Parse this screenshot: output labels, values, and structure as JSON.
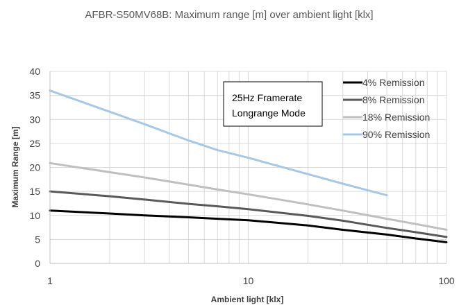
{
  "chart_data": {
    "type": "line",
    "title": "AFBR-S50MV68B: Maximum range [m] over ambient light [klx]",
    "xlabel": "Ambient light [klx]",
    "ylabel": "Maximum Range  [m]",
    "x_scale": "log",
    "xlim": [
      1,
      100
    ],
    "ylim": [
      0,
      40
    ],
    "x_ticks": [
      1,
      10,
      100
    ],
    "y_ticks": [
      0,
      5,
      10,
      15,
      20,
      25,
      30,
      35,
      40
    ],
    "grid": true,
    "legend_position": "top-right",
    "annotation": [
      "25Hz  Framerate",
      "Longrange Mode"
    ],
    "series": [
      {
        "name": "4% Remission",
        "color": "#000000",
        "x": [
          1,
          2,
          3,
          5,
          7,
          10,
          20,
          30,
          50,
          70,
          100
        ],
        "y": [
          11.0,
          10.4,
          10.0,
          9.6,
          9.3,
          9.0,
          7.9,
          7.0,
          6.0,
          5.2,
          4.4
        ]
      },
      {
        "name": "8% Remission",
        "color": "#595959",
        "x": [
          1,
          2,
          3,
          5,
          7,
          10,
          20,
          30,
          50,
          70,
          100
        ],
        "y": [
          15.0,
          14.0,
          13.3,
          12.4,
          11.9,
          11.3,
          9.9,
          8.9,
          7.4,
          6.5,
          5.5
        ]
      },
      {
        "name": "18% Remission",
        "color": "#bfbfbf",
        "x": [
          1,
          2,
          3,
          5,
          7,
          10,
          20,
          30,
          50,
          70,
          100
        ],
        "y": [
          20.9,
          19.0,
          17.9,
          16.4,
          15.4,
          14.4,
          12.3,
          11.0,
          9.3,
          8.2,
          7.0
        ]
      },
      {
        "name": "90% Remission",
        "color": "#a6c8e4",
        "x": [
          1,
          2,
          3,
          5,
          7,
          10,
          20,
          30,
          50
        ],
        "y": [
          36.0,
          31.6,
          29.0,
          25.6,
          23.6,
          22.0,
          18.6,
          16.6,
          14.2
        ]
      }
    ]
  }
}
